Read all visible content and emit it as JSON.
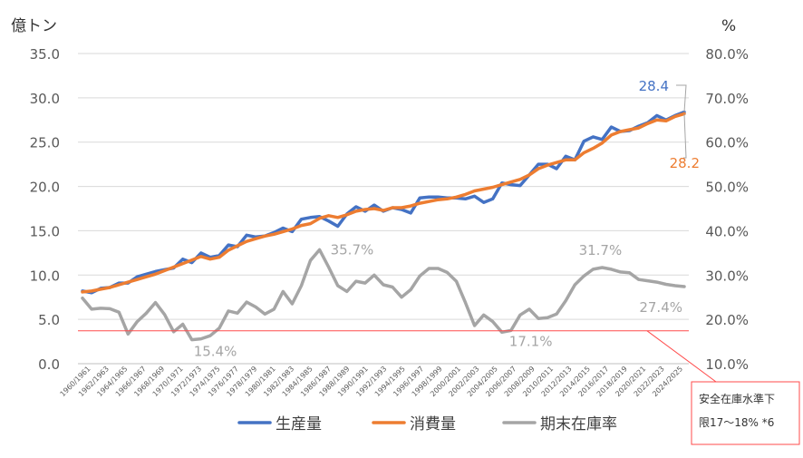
{
  "chart_data": {
    "type": "line",
    "y_left_unit": "億トン",
    "y_right_unit": "%",
    "y_left_ticks": [
      "0.0",
      "5.0",
      "10.0",
      "15.0",
      "20.0",
      "25.0",
      "30.0",
      "35.0"
    ],
    "y_right_ticks": [
      "10.0%",
      "20.0%",
      "30.0%",
      "40.0%",
      "50.0%",
      "60.0%",
      "70.0%",
      "80.0%"
    ],
    "y_left_range": [
      0,
      35
    ],
    "y_right_range": [
      10,
      80
    ],
    "x_labels": [
      "1960/1961",
      "1962/1963",
      "1964/1965",
      "1966/1967",
      "1968/1969",
      "1970/1971",
      "1972/1973",
      "1974/1975",
      "1976/1977",
      "1978/1979",
      "1980/1981",
      "1982/1983",
      "1984/1985",
      "1986/1987",
      "1988/1989",
      "1990/1991",
      "1992/1993",
      "1994/1995",
      "1996/1997",
      "1998/1999",
      "2000/2001",
      "2002/2003",
      "2004/2005",
      "2006/2007",
      "2008/2009",
      "2010/2011",
      "2012/2013",
      "2014/2015",
      "2016/2017",
      "2018/2019",
      "2020/2021",
      "2022/2023",
      "2024/2025"
    ],
    "series": [
      {
        "name": "生産量",
        "axis": "left",
        "color": "#4472C4",
        "values": [
          8.2,
          8.0,
          8.5,
          8.6,
          9.1,
          9.1,
          9.8,
          10.1,
          10.4,
          10.6,
          10.8,
          11.8,
          11.4,
          12.5,
          12.0,
          12.2,
          13.4,
          13.2,
          14.5,
          14.3,
          14.4,
          14.8,
          15.3,
          14.9,
          16.3,
          16.5,
          16.6,
          16.1,
          15.5,
          16.9,
          17.7,
          17.2,
          17.9,
          17.2,
          17.6,
          17.4,
          17.0,
          18.7,
          18.8,
          18.8,
          18.7,
          18.7,
          18.6,
          18.9,
          18.2,
          18.6,
          20.4,
          20.2,
          20.1,
          21.3,
          22.5,
          22.5,
          22.0,
          23.4,
          23.0,
          25.1,
          25.6,
          25.3,
          26.7,
          26.2,
          26.3,
          26.8,
          27.2,
          28.0,
          27.5,
          28.0,
          28.4
        ]
      },
      {
        "name": "消費量",
        "axis": "left",
        "color": "#ED7D31",
        "values": [
          8.1,
          8.2,
          8.4,
          8.6,
          8.9,
          9.2,
          9.5,
          9.8,
          10.1,
          10.5,
          10.9,
          11.3,
          11.7,
          12.1,
          11.8,
          12.0,
          12.8,
          13.3,
          13.8,
          14.1,
          14.4,
          14.6,
          14.9,
          15.2,
          15.6,
          15.8,
          16.4,
          16.7,
          16.5,
          16.8,
          17.2,
          17.4,
          17.5,
          17.3,
          17.6,
          17.6,
          17.8,
          18.1,
          18.3,
          18.5,
          18.6,
          18.8,
          19.1,
          19.5,
          19.7,
          19.9,
          20.2,
          20.5,
          20.8,
          21.3,
          22.0,
          22.4,
          22.7,
          23.0,
          23.0,
          23.8,
          24.3,
          24.9,
          25.8,
          26.2,
          26.4,
          26.6,
          27.1,
          27.5,
          27.4,
          27.9,
          28.2
        ]
      },
      {
        "name": "期末在庫率",
        "axis": "right",
        "color": "#A5A5A5",
        "values": [
          24.8,
          22.3,
          22.5,
          22.4,
          21.6,
          16.7,
          19.5,
          21.4,
          23.8,
          21.1,
          17.2,
          18.9,
          15.4,
          15.6,
          16.3,
          18.0,
          21.9,
          21.4,
          23.9,
          22.8,
          21.2,
          22.3,
          26.3,
          23.5,
          27.6,
          33.3,
          35.7,
          31.8,
          27.6,
          26.3,
          28.6,
          28.2,
          30.0,
          27.8,
          27.3,
          25.0,
          26.7,
          29.8,
          31.5,
          31.5,
          30.6,
          28.6,
          23.8,
          18.6,
          21.0,
          19.5,
          17.1,
          17.5,
          21.0,
          22.3,
          20.2,
          20.4,
          21.2,
          24.2,
          27.8,
          29.8,
          31.3,
          31.7,
          31.3,
          30.7,
          30.5,
          29.0,
          28.7,
          28.4,
          27.9,
          27.6,
          27.4
        ]
      }
    ],
    "annotations": [
      {
        "text": "28.4",
        "series": "生産量"
      },
      {
        "text": "28.2",
        "series": "消費量"
      },
      {
        "text": "35.7%",
        "series": "期末在庫率"
      },
      {
        "text": "15.4%",
        "series": "期末在庫率"
      },
      {
        "text": "17.1%",
        "series": "期末在庫率"
      },
      {
        "text": "31.7%",
        "series": "期末在庫率"
      },
      {
        "text": "27.4%",
        "series": "期末在庫率"
      }
    ],
    "safety_line": {
      "value_right": 17.0,
      "color": "#FF4B4B"
    },
    "callout": {
      "line1": "安全在庫水準下",
      "line2": "限17～18% *6"
    },
    "legend_position": "bottom",
    "grid": "horizontal"
  }
}
